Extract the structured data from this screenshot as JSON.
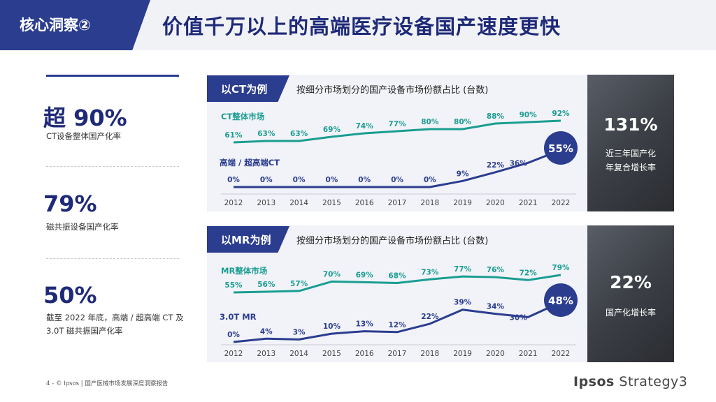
{
  "header": {
    "tag": "核心洞察②",
    "title": "价值千万以上的高端医疗设备国产速度更快"
  },
  "stats": [
    {
      "value": "超 90%",
      "label": "CT设备整体国产化率"
    },
    {
      "value": "79%",
      "label": "磁共振设备国产化率"
    },
    {
      "value": "50%",
      "label": "截至 2022 年底，高端 / 超高端 CT 及 3.0T 磁共振国产化率"
    }
  ],
  "colors": {
    "navy": "#2b3d8f",
    "teal": "#1a9d92",
    "panel": "#f2f3f8"
  },
  "chart_data": [
    {
      "type": "line",
      "tag": "以CT为例",
      "subtitle": "按细分市场划分的国产设备市场份额占比 (台数)",
      "categories": [
        "2012",
        "2013",
        "2014",
        "2015",
        "2016",
        "2017",
        "2018",
        "2019",
        "2020",
        "2021",
        "2022"
      ],
      "series": [
        {
          "name": "CT整体市场",
          "color": "#1a9d92",
          "values": [
            61,
            63,
            63,
            69,
            74,
            77,
            80,
            80,
            88,
            90,
            92
          ],
          "labels": [
            "61%",
            "63%",
            "63%",
            "69%",
            "74%",
            "77%",
            "80%",
            "80%",
            "88%",
            "90%",
            "92%"
          ]
        },
        {
          "name": "高端 / 超高端CT",
          "color": "#2b3d8f",
          "values": [
            0,
            0,
            0,
            0,
            0,
            0,
            0,
            9,
            22,
            36,
            55
          ],
          "labels": [
            "0%",
            "0%",
            "0%",
            "0%",
            "0%",
            "0%",
            "0%",
            "9%",
            "22%",
            "36%",
            "55%"
          ]
        }
      ],
      "side": {
        "value": "131%",
        "caption": [
          "近三年国产化",
          "年复合增长率"
        ]
      }
    },
    {
      "type": "line",
      "tag": "以MR为例",
      "subtitle": "按细分市场划分的国产设备市场份额占比 (台数)",
      "categories": [
        "2012",
        "2013",
        "2014",
        "2015",
        "2016",
        "2017",
        "2018",
        "2019",
        "2020",
        "2021",
        "2022"
      ],
      "series": [
        {
          "name": "MR整体市场",
          "color": "#1a9d92",
          "values": [
            55,
            56,
            57,
            70,
            69,
            68,
            73,
            77,
            76,
            72,
            79
          ],
          "labels": [
            "55%",
            "56%",
            "57%",
            "70%",
            "69%",
            "68%",
            "73%",
            "77%",
            "76%",
            "72%",
            "79%"
          ]
        },
        {
          "name": "3.0T MR",
          "color": "#2b3d8f",
          "values": [
            0,
            4,
            3,
            10,
            13,
            12,
            22,
            39,
            34,
            30,
            48
          ],
          "labels": [
            "0%",
            "4%",
            "3%",
            "10%",
            "13%",
            "12%",
            "22%",
            "39%",
            "34%",
            "30%",
            "48%"
          ]
        }
      ],
      "side": {
        "value": "22%",
        "caption": [
          "国产化增长率"
        ]
      }
    }
  ],
  "footer": {
    "page": "4 -",
    "text": "© Ipsos | 国产医械市场发展深度洞察报告",
    "brand_bold": "Ipsos",
    "brand_rest": " Strategy3"
  }
}
